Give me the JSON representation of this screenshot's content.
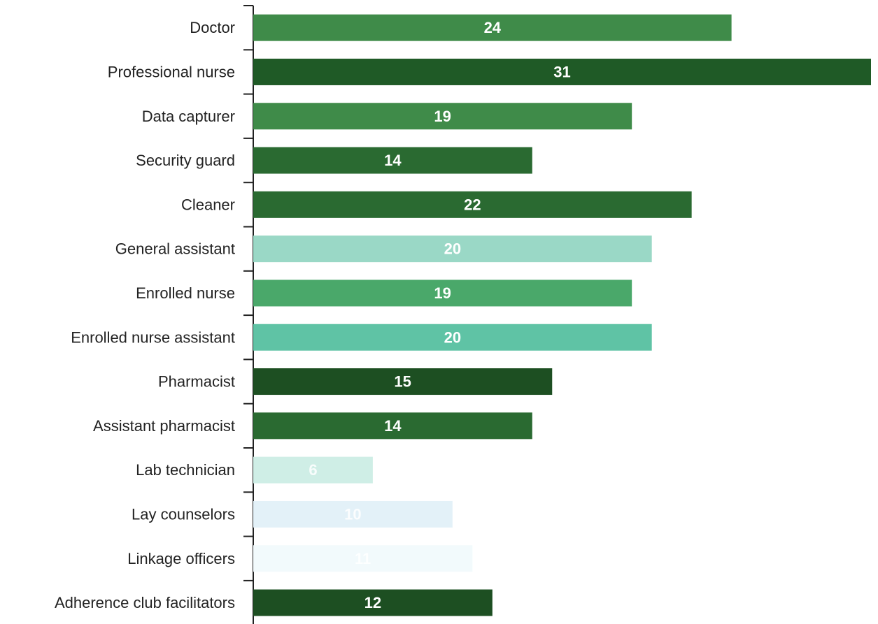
{
  "chart_data": {
    "type": "bar",
    "orientation": "horizontal",
    "categories": [
      "Doctor",
      "Professional nurse",
      "Data capturer",
      "Security guard",
      "Cleaner",
      "General assistant",
      "Enrolled nurse",
      "Enrolled nurse assistant",
      "Pharmacist",
      "Assistant pharmacist",
      "Lab technician",
      "Lay counselors",
      "Linkage officers",
      "Adherence club facilitators"
    ],
    "values": [
      24,
      31,
      19,
      14,
      22,
      20,
      19,
      20,
      15,
      14,
      6,
      10,
      11,
      12
    ],
    "bar_colors": [
      "#3f8b49",
      "#1f5a26",
      "#3f8b49",
      "#2a6a31",
      "#2a6a31",
      "#9ad8c6",
      "#4aa86a",
      "#5fc3a5",
      "#1d4f22",
      "#2a6a31",
      "#cfeee6",
      "#e3f1f8",
      "#f2fafc",
      "#1d4f22"
    ],
    "xlim": [
      0,
      31
    ],
    "grid": false,
    "legend": "none",
    "data_labels": true,
    "title": "",
    "xlabel": "",
    "ylabel": ""
  }
}
